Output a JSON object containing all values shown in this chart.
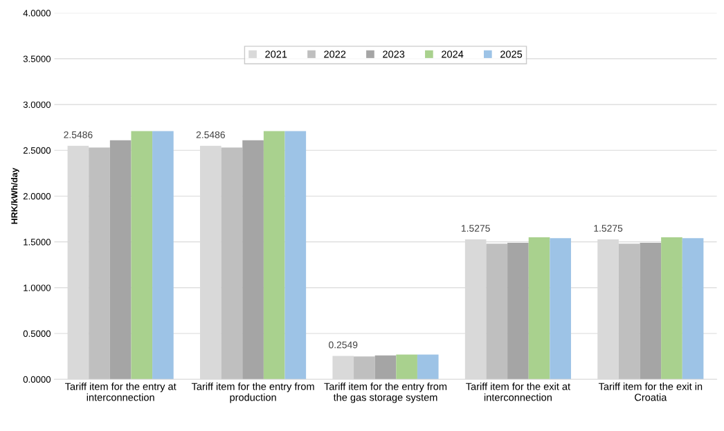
{
  "chart_data": {
    "type": "bar",
    "ylabel": "HRK/kWh/day",
    "categories": [
      "Tariff item for the entry at interconnection",
      "Tariff item for the entry from production",
      "Tariff item for the entry from the gas storage system",
      "Tariff item for the exit at interconnection",
      "Tariff item for the exit in Croatia"
    ],
    "series": [
      {
        "name": "2021",
        "color": "#d9d9d9",
        "values": [
          2.5486,
          2.5486,
          0.2549,
          1.5275,
          1.5275
        ],
        "value_labels": [
          "2.5486",
          "2.5486",
          "0.2549",
          "1.5275",
          "1.5275"
        ]
      },
      {
        "name": "2022",
        "color": "#bfbfbf",
        "values": [
          2.53,
          2.53,
          0.25,
          1.48,
          1.48
        ]
      },
      {
        "name": "2023",
        "color": "#a5a5a5",
        "values": [
          2.61,
          2.61,
          0.26,
          1.49,
          1.49
        ]
      },
      {
        "name": "2024",
        "color": "#a9d18e",
        "values": [
          2.71,
          2.71,
          0.27,
          1.55,
          1.55
        ]
      },
      {
        "name": "2025",
        "color": "#9dc3e6",
        "values": [
          2.71,
          2.71,
          0.27,
          1.54,
          1.54
        ]
      }
    ],
    "ylim": [
      0,
      4
    ],
    "yticks": [
      {
        "value": 0,
        "label": "0.0000"
      },
      {
        "value": 0.5,
        "label": "0.5000"
      },
      {
        "value": 1,
        "label": "1.0000"
      },
      {
        "value": 1.5,
        "label": "1.5000"
      },
      {
        "value": 2,
        "label": "2.0000"
      },
      {
        "value": 2.5,
        "label": "2.5000"
      },
      {
        "value": 3,
        "label": "3.0000"
      },
      {
        "value": 3.5,
        "label": "3.5000"
      },
      {
        "value": 4,
        "label": "4.0000"
      }
    ],
    "grid": "y",
    "legend": "top"
  }
}
